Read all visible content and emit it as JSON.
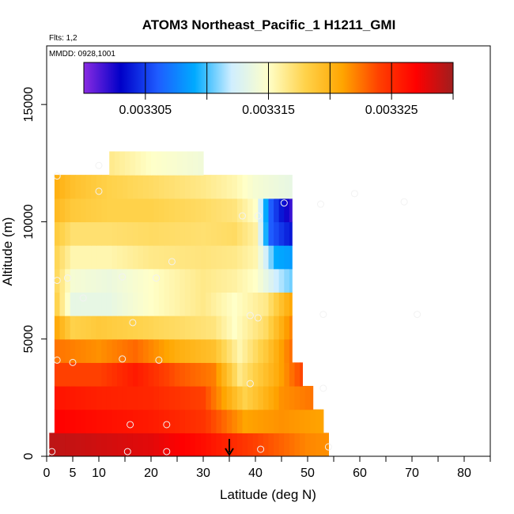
{
  "chart_data": {
    "type": "heatmap",
    "title": "ATOM3 Northeast_Pacific_1 H1211_GMI",
    "notes": [
      "Flts: 1,2",
      "MMDD: 0928,1001"
    ],
    "xlabel": "Latitude (deg N)",
    "ylabel": "Altitude (m)",
    "xlim": [
      0,
      85
    ],
    "ylim": [
      0,
      17500
    ],
    "x_ticks": [
      0,
      5,
      10,
      20,
      30,
      40,
      50,
      60,
      70,
      80
    ],
    "y_ticks": [
      0,
      5000,
      10000,
      15000
    ],
    "y_tick_labels": [
      "0",
      "5000",
      "10000",
      "15000"
    ],
    "colorbar": {
      "range": [
        0.0033,
        0.00333
      ],
      "tick_values": [
        0.003305,
        0.003315,
        0.003325
      ],
      "tick_labels": [
        "0.003305",
        "0.003315",
        "0.003325"
      ],
      "colors": [
        "#8a2be2",
        "#0000c8",
        "#1e5cff",
        "#00aaff",
        "#cfeeff",
        "#ffffc8",
        "#ffd24a",
        "#ffa500",
        "#ff4000",
        "#ff0000",
        "#a01e1e"
      ]
    },
    "marker": {
      "x": 35,
      "label": "arrow"
    },
    "grid": false,
    "rows": [
      {
        "alt": 500,
        "xmin": 0.5,
        "xmax": 54,
        "values": [
          [
            1,
            0.97
          ],
          [
            10,
            0.95
          ],
          [
            20,
            0.93
          ],
          [
            30,
            0.88
          ],
          [
            40,
            0.8
          ],
          [
            50,
            0.73
          ],
          [
            54,
            0.72
          ]
        ]
      },
      {
        "alt": 1500,
        "xmin": 1.5,
        "xmax": 53,
        "values": [
          [
            1.5,
            0.9
          ],
          [
            10,
            0.88
          ],
          [
            20,
            0.86
          ],
          [
            30,
            0.82
          ],
          [
            38,
            0.7
          ],
          [
            45,
            0.72
          ],
          [
            53,
            0.7
          ]
        ]
      },
      {
        "alt": 2500,
        "xmin": 1.5,
        "xmax": 51,
        "values": [
          [
            1.5,
            0.87
          ],
          [
            10,
            0.85
          ],
          [
            20,
            0.84
          ],
          [
            30,
            0.8
          ],
          [
            38,
            0.6
          ],
          [
            45,
            0.72
          ],
          [
            51,
            0.75
          ]
        ]
      },
      {
        "alt": 3500,
        "xmin": 1.5,
        "xmax": 49,
        "values": [
          [
            1.5,
            0.8
          ],
          [
            10,
            0.8
          ],
          [
            17,
            0.86
          ],
          [
            25,
            0.78
          ],
          [
            32,
            0.74
          ],
          [
            37,
            0.55
          ],
          [
            44,
            0.68
          ],
          [
            49,
            0.8
          ]
        ]
      },
      {
        "alt": 4500,
        "xmin": 1.5,
        "xmax": 47,
        "values": [
          [
            1.5,
            0.75
          ],
          [
            10,
            0.72
          ],
          [
            17,
            0.76
          ],
          [
            25,
            0.68
          ],
          [
            32,
            0.64
          ],
          [
            37,
            0.52
          ],
          [
            42,
            0.62
          ],
          [
            47,
            0.76
          ]
        ]
      },
      {
        "alt": 5500,
        "xmin": 1.5,
        "xmax": 47,
        "values": [
          [
            1.5,
            0.7
          ],
          [
            5,
            0.6
          ],
          [
            10,
            0.62
          ],
          [
            17,
            0.6
          ],
          [
            25,
            0.58
          ],
          [
            32,
            0.56
          ],
          [
            36,
            0.5
          ],
          [
            42,
            0.58
          ],
          [
            47,
            0.74
          ]
        ]
      },
      {
        "alt": 6500,
        "xmin": 1.5,
        "xmax": 47,
        "values": [
          [
            1.5,
            0.62
          ],
          [
            5,
            0.45
          ],
          [
            12,
            0.45
          ],
          [
            20,
            0.5
          ],
          [
            30,
            0.55
          ],
          [
            36,
            0.5
          ],
          [
            42,
            0.55
          ],
          [
            47,
            0.7
          ]
        ]
      },
      {
        "alt": 7500,
        "xmin": 1.5,
        "xmax": 47,
        "values": [
          [
            1.5,
            0.6
          ],
          [
            5,
            0.48
          ],
          [
            12,
            0.46
          ],
          [
            20,
            0.5
          ],
          [
            30,
            0.55
          ],
          [
            36,
            0.53
          ],
          [
            40,
            0.5
          ],
          [
            44,
            0.4
          ],
          [
            47,
            0.35
          ]
        ]
      },
      {
        "alt": 8500,
        "xmin": 1.5,
        "xmax": 47,
        "values": [
          [
            1.5,
            0.6
          ],
          [
            5,
            0.52
          ],
          [
            12,
            0.52
          ],
          [
            20,
            0.55
          ],
          [
            30,
            0.56
          ],
          [
            36,
            0.55
          ],
          [
            40,
            0.52
          ],
          [
            44,
            0.3
          ],
          [
            47,
            0.28
          ]
        ]
      },
      {
        "alt": 9500,
        "xmin": 1.5,
        "xmax": 47,
        "values": [
          [
            1.5,
            0.62
          ],
          [
            5,
            0.57
          ],
          [
            12,
            0.57
          ],
          [
            20,
            0.58
          ],
          [
            30,
            0.57
          ],
          [
            36,
            0.58
          ],
          [
            40,
            0.53
          ],
          [
            43,
            0.2
          ],
          [
            47,
            0.12
          ]
        ]
      },
      {
        "alt": 10500,
        "xmin": 1.5,
        "xmax": 47,
        "values": [
          [
            1.5,
            0.66
          ],
          [
            5,
            0.62
          ],
          [
            12,
            0.6
          ],
          [
            20,
            0.6
          ],
          [
            30,
            0.58
          ],
          [
            36,
            0.56
          ],
          [
            40,
            0.5
          ],
          [
            43,
            0.2
          ],
          [
            47,
            0.05
          ]
        ]
      },
      {
        "alt": 11500,
        "xmin": 1.5,
        "xmax": 47,
        "values": [
          [
            1.5,
            0.68
          ],
          [
            5,
            0.64
          ],
          [
            12,
            0.6
          ],
          [
            20,
            0.58
          ],
          [
            30,
            0.55
          ],
          [
            36,
            0.52
          ],
          [
            40,
            0.48
          ],
          [
            47,
            0.45
          ]
        ]
      },
      {
        "alt": 12500,
        "xmin": 12,
        "xmax": 30,
        "values": [
          [
            12,
            0.55
          ],
          [
            20,
            0.5
          ],
          [
            30,
            0.47
          ]
        ]
      }
    ],
    "points": [
      [
        1,
        200
      ],
      [
        15.5,
        200
      ],
      [
        23,
        200
      ],
      [
        41,
        300
      ],
      [
        54,
        400
      ],
      [
        16,
        1350
      ],
      [
        23,
        1350
      ],
      [
        53,
        2900
      ],
      [
        39,
        3100
      ],
      [
        2,
        4100
      ],
      [
        5,
        4000
      ],
      [
        14.5,
        4150
      ],
      [
        21.5,
        4100
      ],
      [
        16.5,
        5700
      ],
      [
        39,
        6000
      ],
      [
        40.5,
        5900
      ],
      [
        53,
        6050
      ],
      [
        71,
        6050
      ],
      [
        7,
        6750
      ],
      [
        2,
        7500
      ],
      [
        4,
        7600
      ],
      [
        14.5,
        7650
      ],
      [
        21,
        7600
      ],
      [
        24,
        8300
      ],
      [
        37.5,
        10250
      ],
      [
        40.5,
        10250
      ],
      [
        45.5,
        10800
      ],
      [
        52.5,
        10750
      ],
      [
        68.5,
        10850
      ],
      [
        59,
        11200
      ],
      [
        10,
        11300
      ],
      [
        2,
        11950
      ],
      [
        10,
        12400
      ]
    ]
  }
}
